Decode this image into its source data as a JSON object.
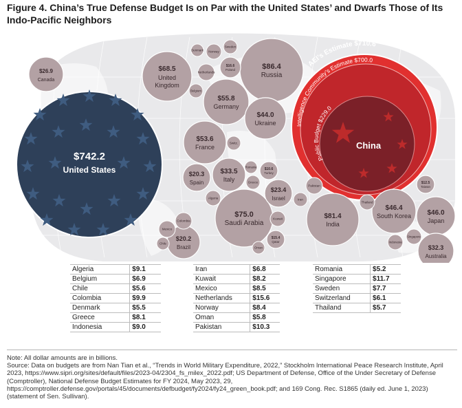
{
  "title": "Figure 4. China’s True Defense Budget Is on Par with the United States’ and Dwarfs Those of Its Indo-Pacific Neighbors",
  "colors": {
    "map_bg": "#e9e9eb",
    "map_land": "#ffffff",
    "bubble": "#b3a1a4",
    "bubble_stroke": "#ffffff",
    "us_fill": "#2e4059",
    "us_star": "#3f5c80",
    "china_outer": "#e1302f",
    "china_mid": "#c0262b",
    "china_inner": "#7b2028",
    "china_star": "#bd2b2b"
  },
  "chart_data": {
    "type": "bubble",
    "unit": "USD billions",
    "countries": [
      {
        "name": "United States",
        "value": 742.2,
        "label": "$742.2"
      },
      {
        "name": "China",
        "value": 229.0,
        "label": "$229.0",
        "estimates": [
          {
            "name": "Public Budget",
            "value": 229.0,
            "label": "$229.0"
          },
          {
            "name": "Intelligence Community’s Estimate",
            "value": 700.0,
            "label": "$700.0"
          },
          {
            "name": "AEI’s Estimate",
            "value": 710.6,
            "label": "$710.6"
          }
        ]
      },
      {
        "name": "Russia",
        "value": 86.4,
        "label": "$86.4"
      },
      {
        "name": "India",
        "value": 81.4,
        "label": "$81.4"
      },
      {
        "name": "Saudi Arabia",
        "value": 75.0,
        "label": "$75.0"
      },
      {
        "name": "United Kingdom",
        "value": 68.5,
        "label": "$68.5"
      },
      {
        "name": "Germany",
        "value": 55.8,
        "label": "$55.8"
      },
      {
        "name": "France",
        "value": 53.6,
        "label": "$53.6"
      },
      {
        "name": "South Korea",
        "value": 46.4,
        "label": "$46.4"
      },
      {
        "name": "Japan",
        "value": 46.0,
        "label": "$46.0"
      },
      {
        "name": "Ukraine",
        "value": 44.0,
        "label": "$44.0"
      },
      {
        "name": "Italy",
        "value": 33.5,
        "label": "$33.5"
      },
      {
        "name": "Australia",
        "value": 32.3,
        "label": "$32.3"
      },
      {
        "name": "Canada",
        "value": 26.9,
        "label": "$26.9"
      },
      {
        "name": "Israel",
        "value": 23.4,
        "label": "$23.4"
      },
      {
        "name": "Spain",
        "value": 20.3,
        "label": "$20.3"
      },
      {
        "name": "Brazil",
        "value": 20.2,
        "label": "$20.2"
      },
      {
        "name": "Poland",
        "value": 16.6,
        "label": "$16.6"
      },
      {
        "name": "Qatar",
        "value": 15.4,
        "label": "$15.4"
      },
      {
        "name": "Taiwan",
        "value": 12.5,
        "label": "$12.5"
      },
      {
        "name": "Turkey",
        "value": 10.6,
        "label": "$10.6"
      }
    ],
    "small_labels": [
      "Norway",
      "Sweden",
      "Denmark",
      "Netherlands",
      "Belgium",
      "Switz.",
      "Romania",
      "Greece",
      "Algeria",
      "Kuwait",
      "Iran",
      "Pakistan",
      "Thailand",
      "Singapore",
      "Indonesia",
      "Colombia",
      "Mexico",
      "Chile",
      "Oman"
    ],
    "tables": [
      {
        "rows": [
          {
            "country": "Algeria",
            "value": "$9.1"
          },
          {
            "country": "Belgium",
            "value": "$6.9"
          },
          {
            "country": "Chile",
            "value": "$5.6"
          },
          {
            "country": "Colombia",
            "value": "$9.9"
          },
          {
            "country": "Denmark",
            "value": "$5.5"
          },
          {
            "country": "Greece",
            "value": "$8.1"
          },
          {
            "country": "Indonesia",
            "value": "$9.0"
          }
        ]
      },
      {
        "rows": [
          {
            "country": "Iran",
            "value": "$6.8"
          },
          {
            "country": "Kuwait",
            "value": "$8.2"
          },
          {
            "country": "Mexico",
            "value": "$8.5"
          },
          {
            "country": "Netherlands",
            "value": "$15.6"
          },
          {
            "country": "Norway",
            "value": "$8.4"
          },
          {
            "country": "Oman",
            "value": "$5.8"
          },
          {
            "country": "Pakistan",
            "value": "$10.3"
          }
        ]
      },
      {
        "rows": [
          {
            "country": "Romania",
            "value": "$5.2"
          },
          {
            "country": "Singapore",
            "value": "$11.7"
          },
          {
            "country": "Sweden",
            "value": "$7.7"
          },
          {
            "country": "Switzerland",
            "value": "$6.1"
          },
          {
            "country": "Thailand",
            "value": "$5.7"
          }
        ]
      }
    ]
  },
  "note": "Note: All dollar amounts are in billions.",
  "source": "Source: Data on budgets are from Nan Tian et al., “Trends in World Military Expenditure, 2022,” Stockholm International Peace Research Institute, April 2023, https://www.sipri.org/sites/default/files/2023-04/2304_fs_milex_2022.pdf; US Department of Defense, Office of the Under Secretary of Defense (Comptroller), National Defense Budget Estimates for FY 2024, May 2023, 29, https://comptroller.defense.gov/portals/45/documents/defbudget/fy2024/fy24_green_book.pdf; and 169 Cong. Rec. S1865 (daily ed. June 1, 2023) (statement of Sen. Sullivan)."
}
